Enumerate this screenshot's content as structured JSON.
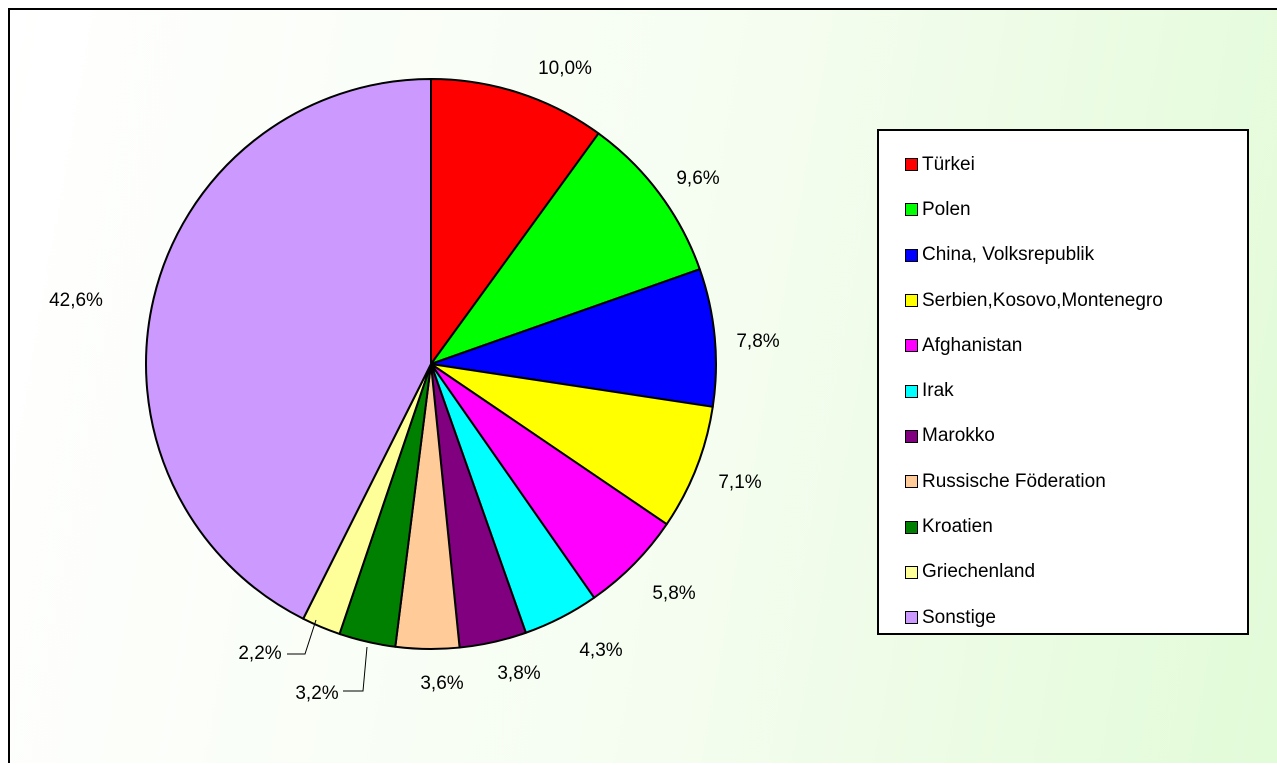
{
  "chart_data": {
    "type": "pie",
    "title": "",
    "slices": [
      {
        "label": "Türkei",
        "value": 10.0,
        "display": "10,0%",
        "color": "#ff0000"
      },
      {
        "label": "Polen",
        "value": 9.6,
        "display": "9,6%",
        "color": "#00ff00"
      },
      {
        "label": "China, Volksrepublik",
        "value": 7.8,
        "display": "7,8%",
        "color": "#0000ff"
      },
      {
        "label": "Serbien,Kosovo,Montenegro",
        "value": 7.1,
        "display": "7,1%",
        "color": "#ffff00"
      },
      {
        "label": "Afghanistan",
        "value": 5.8,
        "display": "5,8%",
        "color": "#ff00ff"
      },
      {
        "label": "Irak",
        "value": 4.3,
        "display": "4,3%",
        "color": "#00ffff"
      },
      {
        "label": "Marokko",
        "value": 3.8,
        "display": "3,8%",
        "color": "#800080"
      },
      {
        "label": "Russische Föderation",
        "value": 3.6,
        "display": "3,6%",
        "color": "#ffcc99"
      },
      {
        "label": "Kroatien",
        "value": 3.2,
        "display": "3,2%",
        "color": "#008000"
      },
      {
        "label": "Griechenland",
        "value": 2.2,
        "display": "2,2%",
        "color": "#ffff99"
      },
      {
        "label": "Sonstige",
        "value": 42.6,
        "display": "42,6%",
        "color": "#cc99ff"
      }
    ],
    "legend_position": "right",
    "start_angle": "12 o'clock",
    "direction": "clockwise"
  }
}
